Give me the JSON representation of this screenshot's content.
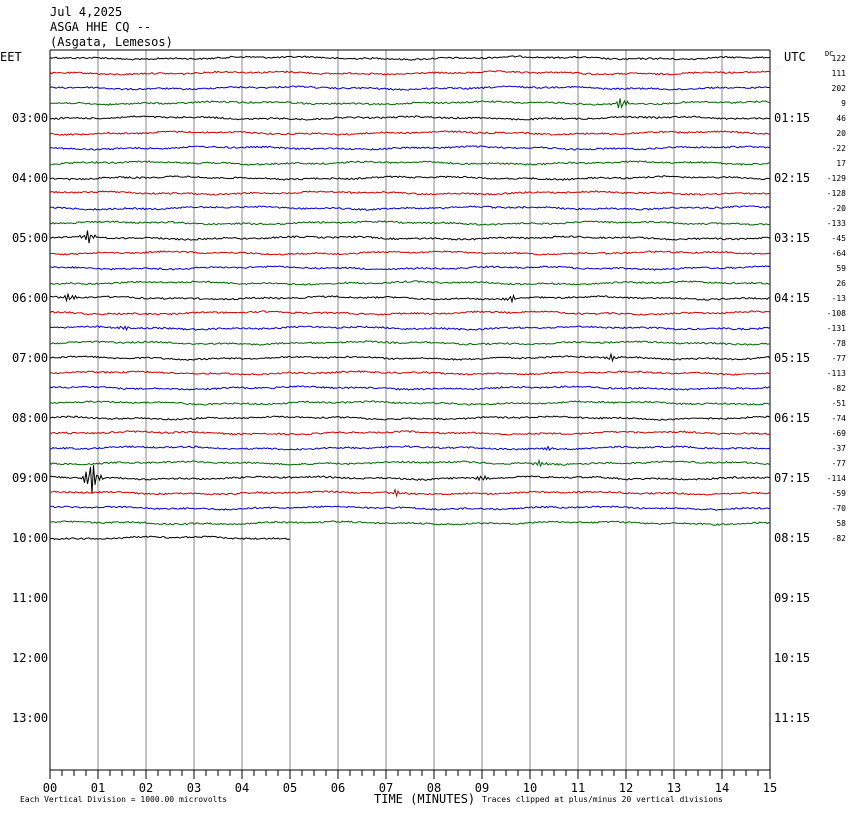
{
  "header": {
    "date": "Jul 4,2025",
    "station": "ASGA HHE CQ --",
    "location": "(Asgata, Lemesos)"
  },
  "left_tz": "EET",
  "right_tz": "UTC",
  "dc_label": "DC",
  "footer": {
    "scale_note": "Each Vertical Division = 1000.00 microvolts",
    "xlabel": "TIME (MINUTES)",
    "clip_note": "Traces clipped at plus/minus 20 vertical divisions"
  },
  "colors": {
    "trace_cycle": [
      "#000000",
      "#cc0000",
      "#0000cc",
      "#006600"
    ],
    "grid": "#888888",
    "axis": "#000000"
  },
  "chart_data": {
    "type": "line",
    "title": "ASGA HHE CQ --",
    "xlabel": "TIME (MINUTES)",
    "xlim": [
      0,
      15
    ],
    "x_ticks": [
      "00",
      "01",
      "02",
      "03",
      "04",
      "05",
      "06",
      "07",
      "08",
      "09",
      "10",
      "11",
      "12",
      "13",
      "14",
      "15"
    ],
    "left_hour_labels": [
      {
        "row": 4,
        "label": "03:00"
      },
      {
        "row": 8,
        "label": "04:00"
      },
      {
        "row": 12,
        "label": "05:00"
      },
      {
        "row": 16,
        "label": "06:00"
      },
      {
        "row": 20,
        "label": "07:00"
      },
      {
        "row": 24,
        "label": "08:00"
      },
      {
        "row": 28,
        "label": "09:00"
      },
      {
        "row": 32,
        "label": "10:00"
      },
      {
        "row": 36,
        "label": "11:00"
      },
      {
        "row": 40,
        "label": "12:00"
      },
      {
        "row": 44,
        "label": "13:00"
      }
    ],
    "right_hour_labels": [
      {
        "row": 4,
        "label": "01:15"
      },
      {
        "row": 8,
        "label": "02:15"
      },
      {
        "row": 12,
        "label": "03:15"
      },
      {
        "row": 16,
        "label": "04:15"
      },
      {
        "row": 20,
        "label": "05:15"
      },
      {
        "row": 24,
        "label": "06:15"
      },
      {
        "row": 28,
        "label": "07:15"
      },
      {
        "row": 32,
        "label": "08:15"
      },
      {
        "row": 36,
        "label": "09:15"
      },
      {
        "row": 40,
        "label": "10:15"
      },
      {
        "row": 44,
        "label": "11:15"
      }
    ],
    "dc_offsets": [
      "122",
      "111",
      "202",
      "9",
      "46",
      "20",
      "-22",
      "17",
      "-129",
      "-128",
      "-20",
      "-133",
      "-45",
      "-64",
      "59",
      "26",
      "-13",
      "-108",
      "-131",
      "-78",
      "-77",
      "-113",
      "-82",
      "-51",
      "-74",
      "-69",
      "-37",
      "-77",
      "-114",
      "-59",
      "-70",
      "58",
      "-82"
    ],
    "trace_rows": 33,
    "total_rows": 48,
    "last_trace_end_minute": 5,
    "events": [
      {
        "row": 3,
        "minute": 11.9,
        "amp": 1.0
      },
      {
        "row": 12,
        "minute": 0.8,
        "amp": 1.0
      },
      {
        "row": 16,
        "minute": 0.4,
        "amp": 0.7
      },
      {
        "row": 16,
        "minute": 9.6,
        "amp": 0.6
      },
      {
        "row": 18,
        "minute": 1.5,
        "amp": 0.5
      },
      {
        "row": 20,
        "minute": 11.7,
        "amp": 0.5
      },
      {
        "row": 26,
        "minute": 10.4,
        "amp": 0.5
      },
      {
        "row": 27,
        "minute": 10.2,
        "amp": 0.5
      },
      {
        "row": 28,
        "minute": 0.85,
        "amp": 3.0
      },
      {
        "row": 28,
        "minute": 9.0,
        "amp": 0.6
      },
      {
        "row": 29,
        "minute": 7.2,
        "amp": 0.5
      }
    ]
  }
}
